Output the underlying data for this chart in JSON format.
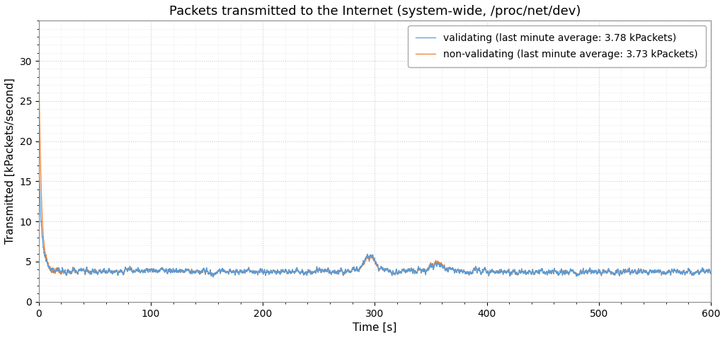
{
  "title": "Packets transmitted to the Internet (system-wide, /proc/net/dev)",
  "xlabel": "Time [s]",
  "ylabel": "Transmitted [kPackets/second]",
  "xlim": [
    0,
    600
  ],
  "ylim": [
    0,
    35
  ],
  "yticks": [
    0,
    5,
    10,
    15,
    20,
    25,
    30
  ],
  "xticks": [
    0,
    100,
    200,
    300,
    400,
    500,
    600
  ],
  "color_validating": "#5b9bd5",
  "color_nonvalidating": "#ed7d31",
  "label_validating": "validating (last minute average: 3.78 kPackets)",
  "label_nonvalidating": "non-validating (last minute average: 3.73 kPackets)",
  "background_color": "#ffffff",
  "grid_color": "#cccccc",
  "linewidth": 0.9,
  "title_fontsize": 13,
  "axis_label_fontsize": 11,
  "tick_fontsize": 10,
  "legend_fontsize": 10
}
